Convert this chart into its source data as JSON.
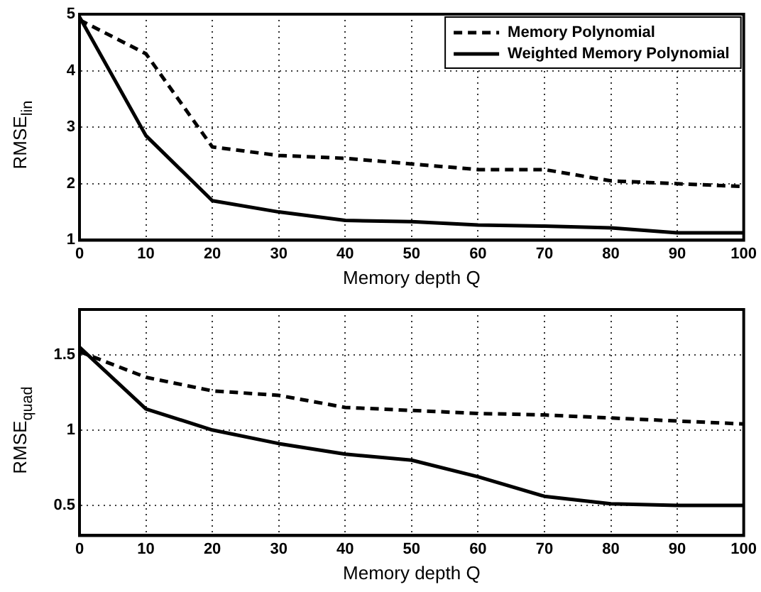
{
  "chart_data": [
    {
      "type": "line",
      "xlabel": "Memory depth Q",
      "ylabel": "RMSE$_{lin}$",
      "x": [
        0,
        10,
        20,
        30,
        40,
        50,
        60,
        70,
        80,
        90,
        100
      ],
      "xlim": [
        0,
        100
      ],
      "xticks": [
        0,
        10,
        20,
        30,
        40,
        50,
        60,
        70,
        80,
        90,
        100
      ],
      "ylim": [
        1,
        5
      ],
      "yticks": [
        1,
        2,
        3,
        4,
        5
      ],
      "grid": true,
      "legend": "top right",
      "marker": "none",
      "series": [
        {
          "name": "Memory Polynomial",
          "color": "#000000",
          "line_style": "dashed",
          "values": [
            4.9,
            4.3,
            2.65,
            2.5,
            2.45,
            2.35,
            2.25,
            2.25,
            2.05,
            2.0,
            1.95
          ]
        },
        {
          "name": "Weighted Memory Polynomial",
          "color": "#000000",
          "line_style": "solid",
          "values": [
            4.95,
            2.85,
            1.7,
            1.5,
            1.35,
            1.33,
            1.27,
            1.25,
            1.22,
            1.13,
            1.13
          ]
        }
      ]
    },
    {
      "type": "line",
      "xlabel": "Memory depth Q",
      "ylabel": "RMSE$_{quad}$",
      "x": [
        0,
        10,
        20,
        30,
        40,
        50,
        60,
        70,
        80,
        90,
        100
      ],
      "xlim": [
        0,
        100
      ],
      "xticks": [
        0,
        10,
        20,
        30,
        40,
        50,
        60,
        70,
        80,
        90,
        100
      ],
      "ylim": [
        0.3,
        1.8
      ],
      "yticks": [
        0.5,
        1,
        1.5
      ],
      "grid": true,
      "marker": "none",
      "series": [
        {
          "color": "#000000",
          "line_style": "dashed",
          "values": [
            1.52,
            1.35,
            1.26,
            1.23,
            1.15,
            1.13,
            1.11,
            1.1,
            1.08,
            1.06,
            1.04
          ]
        },
        {
          "color": "#000000",
          "line_style": "solid",
          "values": [
            1.55,
            1.14,
            1.0,
            0.91,
            0.84,
            0.8,
            0.69,
            0.56,
            0.51,
            0.5,
            0.5
          ]
        }
      ]
    }
  ]
}
